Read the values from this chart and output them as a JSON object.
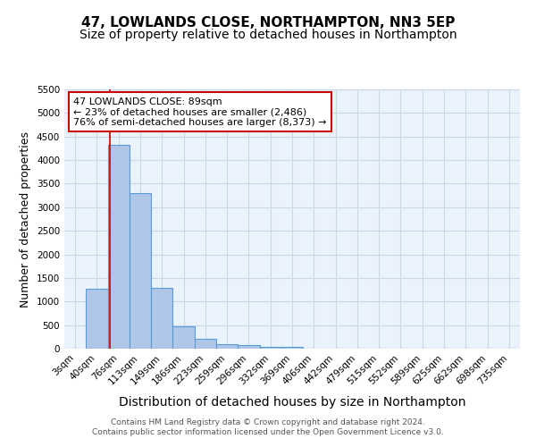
{
  "title1": "47, LOWLANDS CLOSE, NORTHAMPTON, NN3 5EP",
  "title2": "Size of property relative to detached houses in Northampton",
  "xlabel": "Distribution of detached houses by size in Northampton",
  "ylabel": "Number of detached properties",
  "bin_labels": [
    "3sqm",
    "40sqm",
    "76sqm",
    "113sqm",
    "149sqm",
    "186sqm",
    "223sqm",
    "259sqm",
    "296sqm",
    "332sqm",
    "369sqm",
    "406sqm",
    "442sqm",
    "479sqm",
    "515sqm",
    "552sqm",
    "589sqm",
    "625sqm",
    "662sqm",
    "698sqm",
    "735sqm"
  ],
  "bar_values": [
    0,
    1270,
    4330,
    3300,
    1290,
    480,
    205,
    90,
    70,
    40,
    45,
    0,
    0,
    0,
    0,
    0,
    0,
    0,
    0,
    0,
    0
  ],
  "bar_color": "#aec6e8",
  "bar_edge_color": "#5b9bd5",
  "grid_color": "#c8d8e8",
  "background_color": "#eaf3fb",
  "vline_x": 1.62,
  "vline_color": "#cc0000",
  "annotation_text": "47 LOWLANDS CLOSE: 89sqm\n← 23% of detached houses are smaller (2,486)\n76% of semi-detached houses are larger (8,373) →",
  "annotation_box_color": "white",
  "annotation_box_edge": "#cc0000",
  "ylim": [
    0,
    5500
  ],
  "yticks": [
    0,
    500,
    1000,
    1500,
    2000,
    2500,
    3000,
    3500,
    4000,
    4500,
    5000,
    5500
  ],
  "footer_line1": "Contains HM Land Registry data © Crown copyright and database right 2024.",
  "footer_line2": "Contains public sector information licensed under the Open Government Licence v3.0.",
  "title1_fontsize": 11,
  "title2_fontsize": 10,
  "xlabel_fontsize": 10,
  "ylabel_fontsize": 9,
  "tick_fontsize": 7.5,
  "annotation_fontsize": 8
}
